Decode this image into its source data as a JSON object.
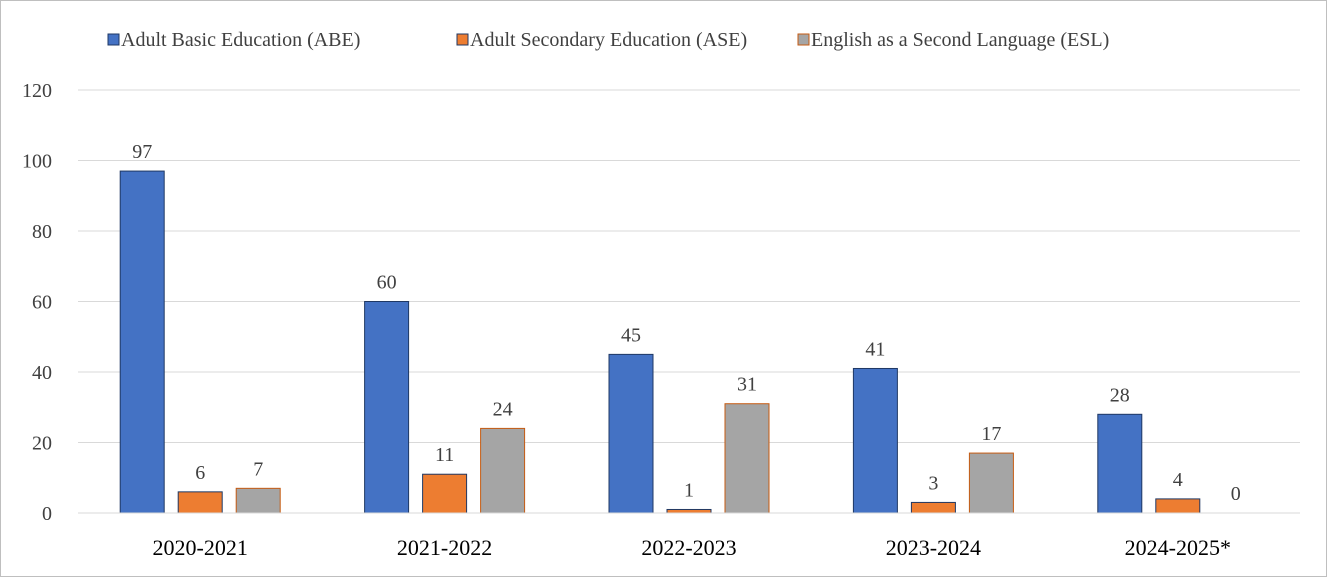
{
  "chart_data": {
    "type": "bar",
    "categories": [
      "2020-2021",
      "2021-2022",
      "2022-2023",
      "2023-2024",
      "2024-2025*"
    ],
    "series": [
      {
        "name": "Adult Basic Education (ABE)",
        "values": [
          97,
          60,
          45,
          41,
          28
        ],
        "color": "#4472c4",
        "stroke": "#1f3864"
      },
      {
        "name": "Adult Secondary Education (ASE)",
        "values": [
          6,
          11,
          1,
          3,
          4
        ],
        "color": "#ed7d31",
        "stroke": "#1f3864"
      },
      {
        "name": "English as a Second Language (ESL)",
        "values": [
          7,
          24,
          31,
          17,
          0
        ],
        "color": "#a5a5a5",
        "stroke": "#c55a11"
      }
    ],
    "yticks": [
      "0",
      "20",
      "40",
      "60",
      "80",
      "100",
      "120"
    ],
    "ylim": [
      0,
      120
    ],
    "grid": true,
    "legend_position": "top"
  }
}
